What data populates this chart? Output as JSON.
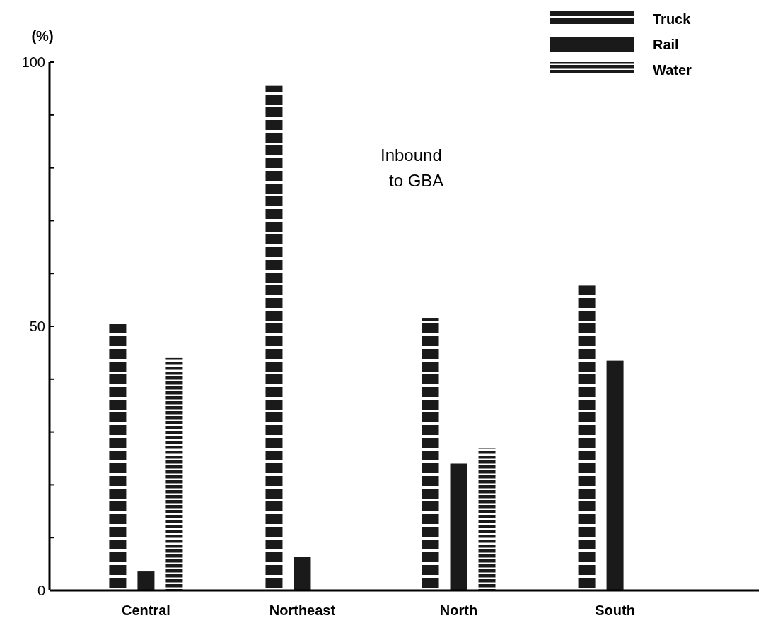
{
  "chart_data": {
    "type": "bar",
    "ylabel": "(%)",
    "categories": [
      "Central",
      "Northeast",
      "North",
      "South"
    ],
    "series": [
      {
        "name": "Truck",
        "color": "#1a1a1a",
        "values": [
          50.4,
          95.5,
          51.6,
          57.7
        ]
      },
      {
        "name": "Rail",
        "color": "#1a1a1a",
        "values": [
          3.6,
          6.3,
          24,
          43.5
        ]
      },
      {
        "name": "Water",
        "color": "#1a1a1a",
        "values": [
          44,
          null,
          27,
          null
        ]
      }
    ],
    "ylim": [
      0,
      100
    ],
    "yticks": [
      0,
      {
        "value": 10,
        "label": null
      },
      {
        "value": 20,
        "label": null
      },
      {
        "value": 30,
        "label": null
      },
      {
        "value": 40,
        "label": null
      },
      50,
      {
        "value": 60,
        "label": null
      },
      {
        "value": 70,
        "label": null
      },
      {
        "value": 80,
        "label": null
      },
      {
        "value": 90,
        "label": null
      },
      100
    ],
    "annotations": [
      "Inbound\nto GBA"
    ],
    "legend": "top right",
    "grid": false
  }
}
